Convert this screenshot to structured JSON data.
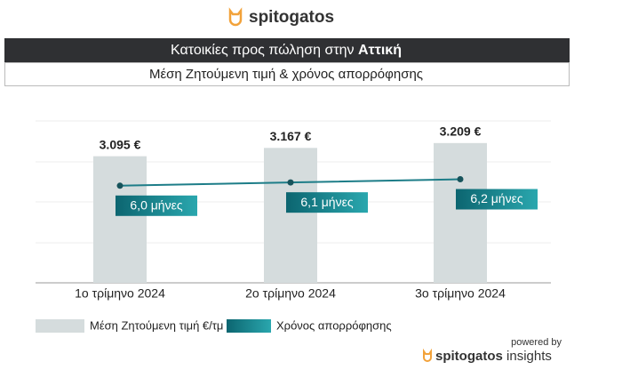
{
  "header": {
    "brand": "spitogatos"
  },
  "chart_data": {
    "type": "combo",
    "title": "Κατοικίες προς πώληση στην",
    "title_highlight": "Αττική",
    "subtitle": "Μέση Ζητούμενη τιμή & χρόνος απορρόφησης",
    "categories": [
      "1ο τρίμηνο 2024",
      "2ο τρίμηνο 2024",
      "3ο τρίμηνο 2024"
    ],
    "ylim": [
      2000,
      3400
    ],
    "y2lim": [
      3,
      8
    ],
    "series": [
      {
        "name": "Μέση Ζητούμενη τιμή €/τμ",
        "type": "bar",
        "color": "#d5dcdd",
        "values": [
          3095,
          3167,
          3209
        ],
        "value_labels": [
          "3.095 €",
          "3.167 €",
          "3.209 €"
        ]
      },
      {
        "name": "Χρόνος απορρόφησης",
        "type": "line",
        "axis": "y2",
        "color": "#1d7d88",
        "values": [
          6.0,
          6.1,
          6.2
        ],
        "value_labels": [
          "6,0 μήνες",
          "6,1 μήνες",
          "6,2 μήνες"
        ]
      }
    ]
  },
  "footer": {
    "powered": "powered by",
    "brand": "spitogatos",
    "suffix": "insights"
  }
}
